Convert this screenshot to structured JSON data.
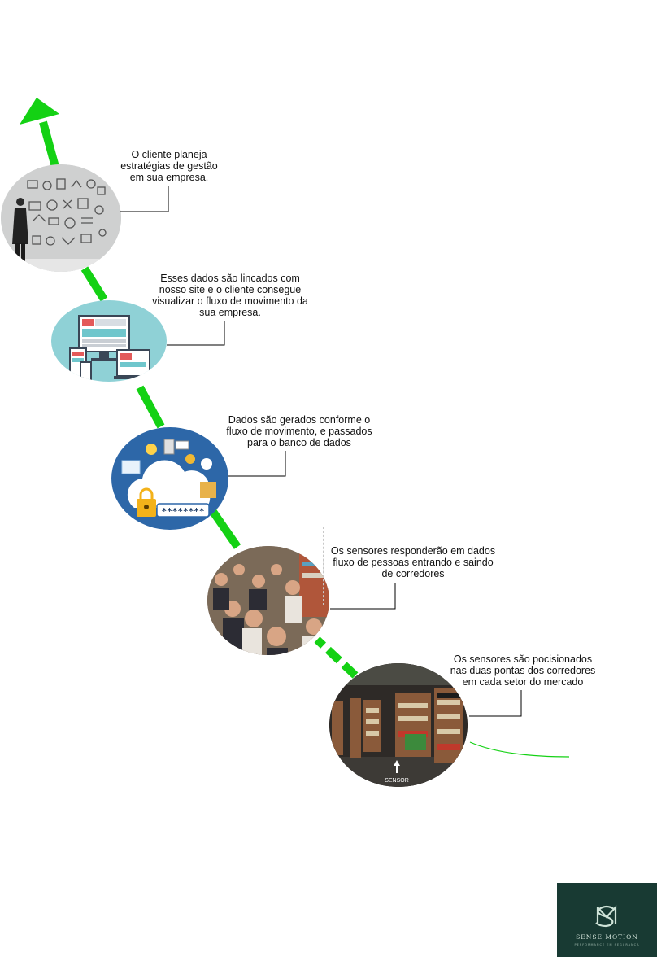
{
  "steps": [
    {
      "id": "planning",
      "text_lines": [
        "O cliente planeja",
        "estratégias de gestão",
        "em sua empresa."
      ],
      "icon": "business-strategy-icon"
    },
    {
      "id": "website",
      "text_lines": [
        "Esses dados são lincados com",
        "nosso site e o cliente consegue",
        "visualizar o fluxo de movimento da",
        "sua empresa."
      ],
      "icon": "responsive-devices-icon"
    },
    {
      "id": "database",
      "text_lines": [
        "Dados são gerados conforme o",
        "fluxo de movimento, e passados",
        "para o banco de dados"
      ],
      "icon": "cloud-database-icon"
    },
    {
      "id": "sensors-data",
      "text_lines": [
        "Os sensores responderão em dados",
        "fluxo de pessoas entrando e saindo",
        "de corredores"
      ],
      "icon": "crowd-photo-icon"
    },
    {
      "id": "sensors-placement",
      "text_lines": [
        "Os sensores são pocisionados",
        "nas duas pontas dos corredores",
        "em cada setor do mercado"
      ],
      "icon": "supermarket-aisle-icon"
    }
  ],
  "photo_labels": {
    "sensor": "SENSOR",
    "password": "********"
  },
  "logo": {
    "name": "SENSE MOTION",
    "tagline": "PERFORMANCE EM SEGURANÇA"
  },
  "colors": {
    "arrow": "#14d114",
    "logo_bg": "#183a33"
  }
}
